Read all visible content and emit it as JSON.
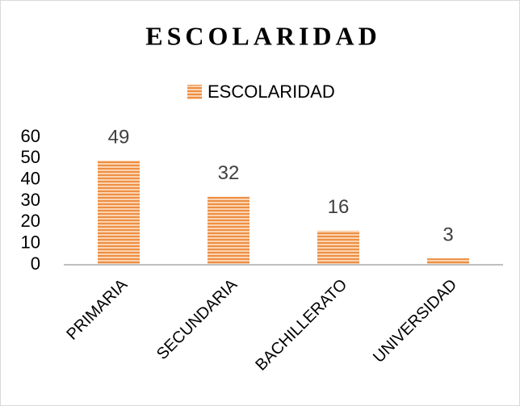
{
  "chart_data": {
    "type": "bar",
    "title": "ESCOLARIDAD",
    "categories": [
      "PRIMARIA",
      "SECUNDARIA",
      "BACHILLERATO",
      "UNIVERSIDAD"
    ],
    "series": [
      {
        "name": "ESCOLARIDAD",
        "color": "#ed8f45",
        "values": [
          49,
          32,
          16,
          3
        ]
      }
    ],
    "ylim": [
      0,
      60
    ],
    "yticks": [
      0,
      10,
      20,
      30,
      40,
      50,
      60
    ],
    "grid": false,
    "legend": "top"
  }
}
